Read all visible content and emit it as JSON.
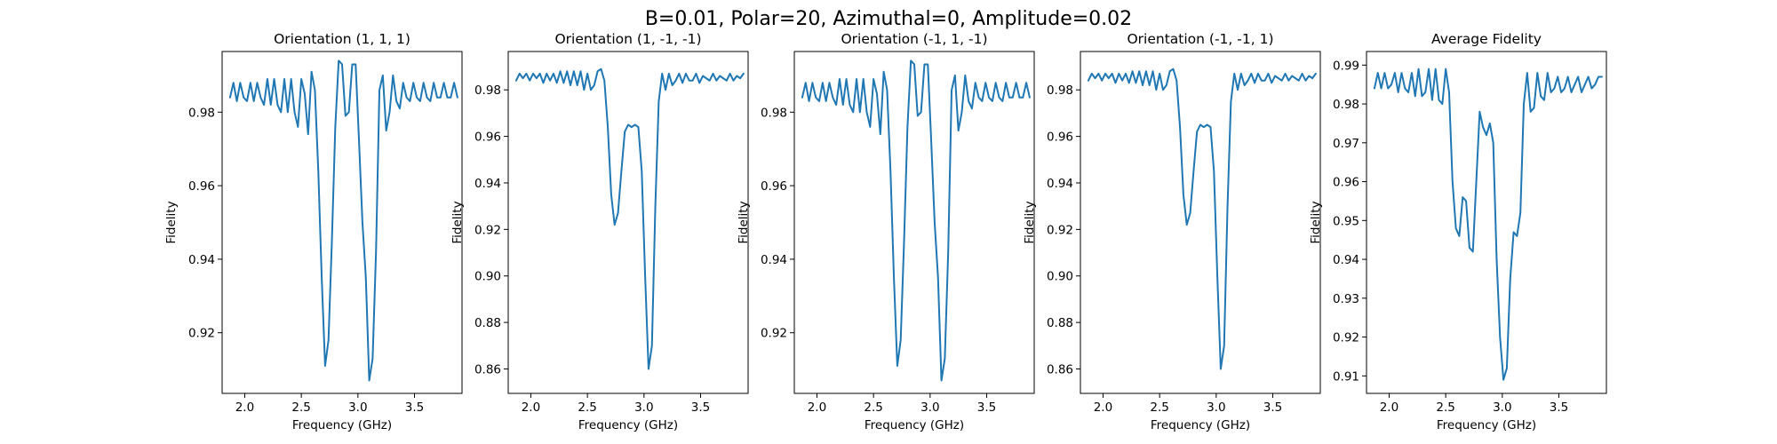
{
  "figure": {
    "title": "B=0.01, Polar=20, Azimuthal=0, Amplitude=0.02",
    "line_color": "#1f77b4"
  },
  "chart_data": [
    {
      "type": "line",
      "title": "Orientation (1, 1, 1)",
      "xlabel": "Frequency (GHz)",
      "ylabel": "Fidelity",
      "xlim": [
        1.8,
        3.92
      ],
      "ylim": [
        0.9035,
        0.9965
      ],
      "xticks": [
        2.0,
        2.5,
        3.0,
        3.5
      ],
      "xtick_labels": [
        "2.0",
        "2.5",
        "3.0",
        "3.5"
      ],
      "yticks": [
        0.92,
        0.94,
        0.96,
        0.98
      ],
      "ytick_labels": [
        "0.92",
        "0.94",
        "0.96",
        "0.98"
      ],
      "grid": false,
      "x": [
        1.87,
        1.9,
        1.93,
        1.96,
        1.99,
        2.02,
        2.05,
        2.08,
        2.11,
        2.14,
        2.17,
        2.2,
        2.23,
        2.26,
        2.29,
        2.32,
        2.35,
        2.38,
        2.41,
        2.44,
        2.47,
        2.5,
        2.53,
        2.56,
        2.59,
        2.62,
        2.65,
        2.68,
        2.71,
        2.74,
        2.77,
        2.8,
        2.83,
        2.86,
        2.89,
        2.92,
        2.95,
        2.98,
        3.01,
        3.04,
        3.07,
        3.1,
        3.13,
        3.16,
        3.19,
        3.22,
        3.25,
        3.28,
        3.31,
        3.34,
        3.37,
        3.4,
        3.43,
        3.46,
        3.49,
        3.52,
        3.55,
        3.58,
        3.61,
        3.64,
        3.67,
        3.7,
        3.73,
        3.76,
        3.79,
        3.82,
        3.85,
        3.88
      ],
      "y": [
        0.984,
        0.988,
        0.983,
        0.988,
        0.984,
        0.983,
        0.988,
        0.983,
        0.988,
        0.984,
        0.982,
        0.989,
        0.982,
        0.989,
        0.982,
        0.98,
        0.989,
        0.98,
        0.989,
        0.98,
        0.976,
        0.989,
        0.985,
        0.974,
        0.991,
        0.986,
        0.964,
        0.935,
        0.911,
        0.918,
        0.945,
        0.976,
        0.994,
        0.993,
        0.979,
        0.98,
        0.993,
        0.993,
        0.972,
        0.95,
        0.935,
        0.907,
        0.913,
        0.942,
        0.986,
        0.99,
        0.975,
        0.98,
        0.99,
        0.983,
        0.981,
        0.988,
        0.984,
        0.983,
        0.988,
        0.984,
        0.983,
        0.988,
        0.984,
        0.983,
        0.988,
        0.984,
        0.984,
        0.988,
        0.984,
        0.984,
        0.988,
        0.984
      ]
    },
    {
      "type": "line",
      "title": "Orientation (1, -1, -1)",
      "xlabel": "Frequency (GHz)",
      "ylabel": "Fidelity",
      "xlim": [
        1.8,
        3.92
      ],
      "ylim": [
        0.8495,
        0.9965
      ],
      "xticks": [
        2.0,
        2.5,
        3.0,
        3.5
      ],
      "xtick_labels": [
        "2.0",
        "2.5",
        "3.0",
        "3.5"
      ],
      "yticks": [
        0.86,
        0.88,
        0.9,
        0.92,
        0.94,
        0.96,
        0.98
      ],
      "ytick_labels": [
        "0.86",
        "0.88",
        "0.90",
        "0.92",
        "0.94",
        "0.96",
        "0.98"
      ],
      "grid": false,
      "x": [
        1.87,
        1.9,
        1.93,
        1.96,
        1.99,
        2.02,
        2.05,
        2.08,
        2.11,
        2.14,
        2.17,
        2.2,
        2.23,
        2.26,
        2.29,
        2.32,
        2.35,
        2.38,
        2.41,
        2.44,
        2.47,
        2.5,
        2.53,
        2.56,
        2.59,
        2.62,
        2.65,
        2.68,
        2.71,
        2.74,
        2.77,
        2.8,
        2.83,
        2.86,
        2.89,
        2.92,
        2.95,
        2.98,
        3.01,
        3.04,
        3.07,
        3.1,
        3.13,
        3.16,
        3.19,
        3.22,
        3.25,
        3.28,
        3.31,
        3.34,
        3.37,
        3.4,
        3.43,
        3.46,
        3.49,
        3.52,
        3.55,
        3.58,
        3.61,
        3.64,
        3.67,
        3.7,
        3.73,
        3.76,
        3.79,
        3.82,
        3.85,
        3.88
      ],
      "y": [
        0.984,
        0.987,
        0.985,
        0.987,
        0.984,
        0.987,
        0.985,
        0.987,
        0.983,
        0.987,
        0.984,
        0.987,
        0.983,
        0.988,
        0.983,
        0.988,
        0.982,
        0.988,
        0.982,
        0.988,
        0.98,
        0.987,
        0.98,
        0.982,
        0.988,
        0.989,
        0.984,
        0.964,
        0.935,
        0.922,
        0.927,
        0.945,
        0.962,
        0.965,
        0.964,
        0.965,
        0.964,
        0.945,
        0.9,
        0.86,
        0.87,
        0.93,
        0.975,
        0.987,
        0.98,
        0.987,
        0.982,
        0.984,
        0.987,
        0.983,
        0.987,
        0.984,
        0.984,
        0.987,
        0.983,
        0.986,
        0.985,
        0.984,
        0.987,
        0.984,
        0.986,
        0.985,
        0.984,
        0.987,
        0.984,
        0.986,
        0.985,
        0.987
      ]
    },
    {
      "type": "line",
      "title": "Orientation (-1, 1, -1)",
      "xlabel": "Frequency (GHz)",
      "ylabel": "Fidelity",
      "xlim": [
        1.8,
        3.92
      ],
      "ylim": [
        0.9035,
        0.9965
      ],
      "xticks": [
        2.0,
        2.5,
        3.0,
        3.5
      ],
      "xtick_labels": [
        "2.0",
        "2.5",
        "3.0",
        "3.5"
      ],
      "yticks": [
        0.92,
        0.94,
        0.96,
        0.98
      ],
      "ytick_labels": [
        "0.92",
        "0.94",
        "0.96",
        "0.98"
      ],
      "grid": false,
      "x": [
        1.87,
        1.9,
        1.93,
        1.96,
        1.99,
        2.02,
        2.05,
        2.08,
        2.11,
        2.14,
        2.17,
        2.2,
        2.23,
        2.26,
        2.29,
        2.32,
        2.35,
        2.38,
        2.41,
        2.44,
        2.47,
        2.5,
        2.53,
        2.56,
        2.59,
        2.62,
        2.65,
        2.68,
        2.71,
        2.74,
        2.77,
        2.8,
        2.83,
        2.86,
        2.89,
        2.92,
        2.95,
        2.98,
        3.01,
        3.04,
        3.07,
        3.1,
        3.13,
        3.16,
        3.19,
        3.22,
        3.25,
        3.28,
        3.31,
        3.34,
        3.37,
        3.4,
        3.43,
        3.46,
        3.49,
        3.52,
        3.55,
        3.58,
        3.61,
        3.64,
        3.67,
        3.7,
        3.73,
        3.76,
        3.79,
        3.82,
        3.85,
        3.88
      ],
      "y": [
        0.984,
        0.988,
        0.983,
        0.988,
        0.984,
        0.983,
        0.988,
        0.983,
        0.988,
        0.984,
        0.982,
        0.989,
        0.982,
        0.989,
        0.982,
        0.98,
        0.989,
        0.98,
        0.989,
        0.98,
        0.976,
        0.989,
        0.985,
        0.974,
        0.991,
        0.986,
        0.964,
        0.935,
        0.911,
        0.918,
        0.945,
        0.976,
        0.994,
        0.993,
        0.979,
        0.98,
        0.993,
        0.993,
        0.972,
        0.95,
        0.935,
        0.907,
        0.913,
        0.942,
        0.986,
        0.99,
        0.975,
        0.98,
        0.99,
        0.983,
        0.981,
        0.988,
        0.984,
        0.983,
        0.988,
        0.984,
        0.983,
        0.988,
        0.984,
        0.983,
        0.988,
        0.984,
        0.984,
        0.988,
        0.984,
        0.984,
        0.988,
        0.984
      ]
    },
    {
      "type": "line",
      "title": "Orientation (-1, -1, 1)",
      "xlabel": "Frequency (GHz)",
      "ylabel": "Fidelity",
      "xlim": [
        1.8,
        3.92
      ],
      "ylim": [
        0.8495,
        0.9965
      ],
      "xticks": [
        2.0,
        2.5,
        3.0,
        3.5
      ],
      "xtick_labels": [
        "2.0",
        "2.5",
        "3.0",
        "3.5"
      ],
      "yticks": [
        0.86,
        0.88,
        0.9,
        0.92,
        0.94,
        0.96,
        0.98
      ],
      "ytick_labels": [
        "0.86",
        "0.88",
        "0.90",
        "0.92",
        "0.94",
        "0.96",
        "0.98"
      ],
      "grid": false,
      "x": [
        1.87,
        1.9,
        1.93,
        1.96,
        1.99,
        2.02,
        2.05,
        2.08,
        2.11,
        2.14,
        2.17,
        2.2,
        2.23,
        2.26,
        2.29,
        2.32,
        2.35,
        2.38,
        2.41,
        2.44,
        2.47,
        2.5,
        2.53,
        2.56,
        2.59,
        2.62,
        2.65,
        2.68,
        2.71,
        2.74,
        2.77,
        2.8,
        2.83,
        2.86,
        2.89,
        2.92,
        2.95,
        2.98,
        3.01,
        3.04,
        3.07,
        3.1,
        3.13,
        3.16,
        3.19,
        3.22,
        3.25,
        3.28,
        3.31,
        3.34,
        3.37,
        3.4,
        3.43,
        3.46,
        3.49,
        3.52,
        3.55,
        3.58,
        3.61,
        3.64,
        3.67,
        3.7,
        3.73,
        3.76,
        3.79,
        3.82,
        3.85,
        3.88
      ],
      "y": [
        0.984,
        0.987,
        0.985,
        0.987,
        0.984,
        0.987,
        0.985,
        0.987,
        0.983,
        0.987,
        0.984,
        0.987,
        0.983,
        0.988,
        0.983,
        0.988,
        0.982,
        0.988,
        0.982,
        0.988,
        0.98,
        0.987,
        0.98,
        0.982,
        0.988,
        0.989,
        0.984,
        0.964,
        0.935,
        0.922,
        0.927,
        0.945,
        0.962,
        0.965,
        0.964,
        0.965,
        0.964,
        0.945,
        0.9,
        0.86,
        0.87,
        0.93,
        0.975,
        0.987,
        0.98,
        0.987,
        0.982,
        0.984,
        0.987,
        0.983,
        0.987,
        0.984,
        0.984,
        0.987,
        0.983,
        0.986,
        0.985,
        0.984,
        0.987,
        0.984,
        0.986,
        0.985,
        0.984,
        0.987,
        0.984,
        0.986,
        0.985,
        0.987
      ]
    },
    {
      "type": "line",
      "title": "Average Fidelity",
      "xlabel": "Frequency (GHz)",
      "ylabel": "Fidelity",
      "xlim": [
        1.8,
        3.92
      ],
      "ylim": [
        0.9055,
        0.9935
      ],
      "xticks": [
        2.0,
        2.5,
        3.0,
        3.5
      ],
      "xtick_labels": [
        "2.0",
        "2.5",
        "3.0",
        "3.5"
      ],
      "yticks": [
        0.91,
        0.92,
        0.93,
        0.94,
        0.95,
        0.96,
        0.97,
        0.98,
        0.99
      ],
      "ytick_labels": [
        "0.91",
        "0.92",
        "0.93",
        "0.94",
        "0.95",
        "0.96",
        "0.97",
        "0.98",
        "0.99"
      ],
      "grid": false,
      "x": [
        1.87,
        1.9,
        1.93,
        1.96,
        1.99,
        2.02,
        2.05,
        2.08,
        2.11,
        2.14,
        2.17,
        2.2,
        2.23,
        2.26,
        2.29,
        2.32,
        2.35,
        2.38,
        2.41,
        2.44,
        2.47,
        2.5,
        2.53,
        2.56,
        2.59,
        2.62,
        2.65,
        2.68,
        2.71,
        2.74,
        2.77,
        2.8,
        2.83,
        2.86,
        2.89,
        2.92,
        2.95,
        2.98,
        3.01,
        3.04,
        3.07,
        3.1,
        3.13,
        3.16,
        3.19,
        3.22,
        3.25,
        3.28,
        3.31,
        3.34,
        3.37,
        3.4,
        3.43,
        3.46,
        3.49,
        3.52,
        3.55,
        3.58,
        3.61,
        3.64,
        3.67,
        3.7,
        3.73,
        3.76,
        3.79,
        3.82,
        3.85,
        3.88
      ],
      "y": [
        0.984,
        0.988,
        0.984,
        0.988,
        0.984,
        0.985,
        0.988,
        0.983,
        0.988,
        0.984,
        0.983,
        0.988,
        0.982,
        0.989,
        0.982,
        0.983,
        0.989,
        0.981,
        0.989,
        0.981,
        0.98,
        0.989,
        0.983,
        0.96,
        0.948,
        0.946,
        0.956,
        0.955,
        0.943,
        0.942,
        0.96,
        0.978,
        0.974,
        0.972,
        0.975,
        0.97,
        0.94,
        0.92,
        0.909,
        0.912,
        0.935,
        0.947,
        0.946,
        0.952,
        0.98,
        0.988,
        0.978,
        0.979,
        0.988,
        0.982,
        0.981,
        0.988,
        0.983,
        0.984,
        0.987,
        0.983,
        0.984,
        0.987,
        0.983,
        0.985,
        0.987,
        0.983,
        0.985,
        0.987,
        0.984,
        0.985,
        0.987,
        0.987
      ]
    }
  ]
}
